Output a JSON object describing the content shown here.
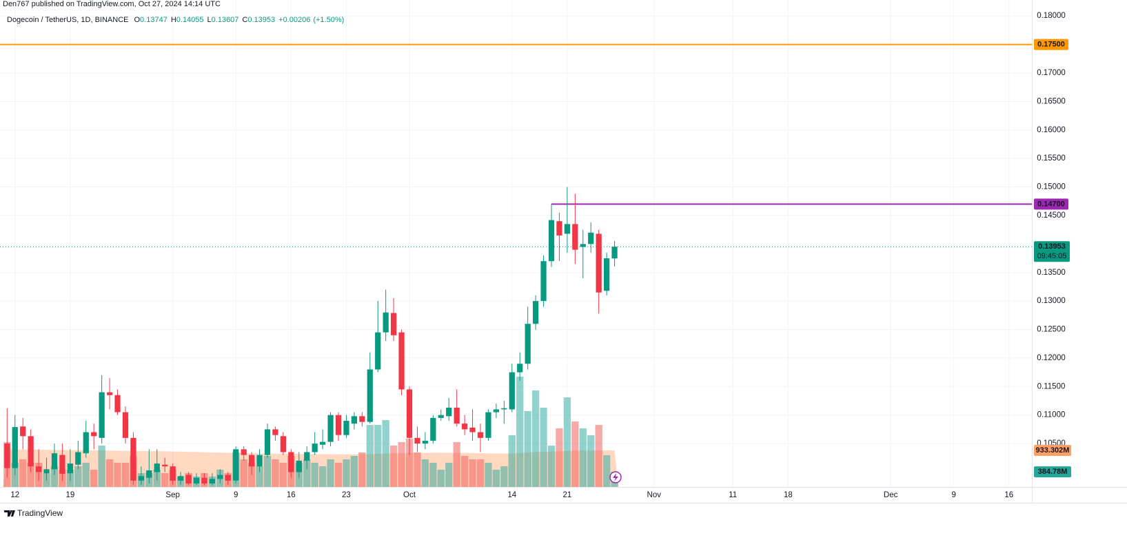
{
  "chart_data": {
    "type": "candlestick",
    "publisher_note": "Den767 published on TradingView.com, Oct 27, 2024 14:14 UTC",
    "title": "Dogecoin / TetherUS, 1D, BINANCE",
    "legend_labels": [
      "O",
      "H",
      "L",
      "C"
    ],
    "change": {
      "value": 0.00206,
      "label": "+0.00206"
    },
    "change_pct": {
      "value": 1.5,
      "label": "(+1.50%)"
    },
    "open": [
      0.105,
      0.1007,
      0.108,
      0.1063,
      0.101,
      0.0998,
      0.1005,
      0.103,
      0.0998,
      0.1013,
      0.1033,
      0.107,
      0.106,
      0.114,
      0.1135,
      0.1105,
      0.106,
      0.0985,
      0.099,
      0.1,
      0.1013,
      0.101,
      0.0985,
      0.0995,
      0.098,
      0.099,
      0.098,
      0.0988,
      0.0995,
      0.0985,
      0.104,
      0.103,
      0.101,
      0.103,
      0.1075,
      0.1063,
      0.1035,
      0.1,
      0.102,
      0.1035,
      0.1048,
      0.1053,
      0.11,
      0.1065,
      0.1085,
      0.1098,
      0.1088,
      0.118,
      0.1245,
      0.1279,
      0.1245,
      0.1145,
      0.106,
      0.105,
      0.1055,
      0.1095,
      0.1098,
      0.1113,
      0.1085,
      0.1078,
      0.107,
      0.106,
      0.1105,
      0.111,
      0.111,
      0.1175,
      0.119,
      0.126,
      0.13,
      0.137,
      0.144,
      0.1418,
      0.1435,
      0.1395,
      0.14,
      0.1418,
      0.1318,
      0.13747
    ],
    "high": [
      0.1112,
      0.11,
      0.1095,
      0.1075,
      0.104,
      0.1025,
      0.105,
      0.105,
      0.104,
      0.1055,
      0.109,
      0.1085,
      0.117,
      0.1165,
      0.1145,
      0.1115,
      0.107,
      0.101,
      0.104,
      0.104,
      0.1025,
      0.1015,
      0.1,
      0.1,
      0.0998,
      0.0998,
      0.0998,
      0.1005,
      0.1,
      0.1045,
      0.1045,
      0.1035,
      0.104,
      0.1085,
      0.108,
      0.107,
      0.104,
      0.1035,
      0.1045,
      0.107,
      0.1075,
      0.1105,
      0.1105,
      0.11,
      0.1105,
      0.1105,
      0.121,
      0.13,
      0.132,
      0.1305,
      0.125,
      0.115,
      0.108,
      0.107,
      0.11,
      0.111,
      0.113,
      0.1145,
      0.11,
      0.111,
      0.1085,
      0.111,
      0.112,
      0.1125,
      0.119,
      0.121,
      0.129,
      0.131,
      0.138,
      0.147,
      0.1455,
      0.15,
      0.1488,
      0.1425,
      0.1438,
      0.1425,
      0.1385,
      0.14055
    ],
    "low": [
      0.099,
      0.0995,
      0.104,
      0.1,
      0.0985,
      0.0985,
      0.0995,
      0.0985,
      0.0985,
      0.1005,
      0.1025,
      0.104,
      0.105,
      0.111,
      0.11,
      0.105,
      0.0978,
      0.0978,
      0.098,
      0.0985,
      0.1,
      0.0978,
      0.0978,
      0.0977,
      0.0977,
      0.0977,
      0.0977,
      0.098,
      0.0978,
      0.098,
      0.102,
      0.0995,
      0.1,
      0.1025,
      0.1055,
      0.103,
      0.099,
      0.099,
      0.1005,
      0.103,
      0.104,
      0.1045,
      0.1055,
      0.106,
      0.1075,
      0.108,
      0.1085,
      0.1175,
      0.123,
      0.123,
      0.1135,
      0.103,
      0.1035,
      0.104,
      0.105,
      0.109,
      0.109,
      0.108,
      0.1065,
      0.1055,
      0.1035,
      0.1055,
      0.1095,
      0.1085,
      0.1105,
      0.116,
      0.118,
      0.125,
      0.129,
      0.136,
      0.137,
      0.1385,
      0.1365,
      0.134,
      0.1385,
      0.1278,
      0.131,
      0.13607
    ],
    "close": [
      0.1007,
      0.1079,
      0.1063,
      0.101,
      0.1,
      0.1005,
      0.1033,
      0.0997,
      0.1015,
      0.1035,
      0.107,
      0.1063,
      0.114,
      0.1135,
      0.1105,
      0.106,
      0.0985,
      0.0993,
      0.1003,
      0.1015,
      0.101,
      0.0985,
      0.0993,
      0.098,
      0.099,
      0.098,
      0.0988,
      0.0995,
      0.0985,
      0.104,
      0.103,
      0.101,
      0.103,
      0.1075,
      0.1065,
      0.1035,
      0.1,
      0.102,
      0.1035,
      0.105,
      0.1053,
      0.11,
      0.1065,
      0.109,
      0.1098,
      0.1088,
      0.118,
      0.1245,
      0.128,
      0.124,
      0.1145,
      0.106,
      0.105,
      0.1055,
      0.1095,
      0.11,
      0.1113,
      0.1085,
      0.1075,
      0.107,
      0.106,
      0.1105,
      0.111,
      0.1112,
      0.1175,
      0.119,
      0.126,
      0.13,
      0.137,
      0.1442,
      0.1415,
      0.1435,
      0.139,
      0.14,
      0.142,
      0.1315,
      0.1375,
      0.13953
    ],
    "up_color": "#089981",
    "down_color": "#f23645",
    "volume": [
      1144,
      616,
      704,
      616,
      616,
      352,
      528,
      440,
      440,
      528,
      616,
      440,
      1056,
      704,
      616,
      616,
      792,
      352,
      352,
      440,
      352,
      440,
      264,
      352,
      264,
      352,
      264,
      440,
      352,
      880,
      704,
      616,
      528,
      792,
      704,
      616,
      792,
      616,
      704,
      616,
      528,
      704,
      616,
      704,
      792,
      880,
      1584,
      1584,
      1707,
      1056,
      1144,
      1232,
      880,
      704,
      616,
      440,
      616,
      1144,
      792,
      704,
      704,
      616,
      440,
      528,
      1320,
      2816,
      1936,
      2464,
      2024,
      1056,
      1496,
      2288,
      1672,
      1496,
      1320,
      1584,
      810,
      384.78
    ],
    "volume_labels": [
      null,
      null,
      null,
      null,
      null,
      null,
      null,
      null,
      null,
      null,
      null,
      null,
      null,
      null,
      null,
      null,
      null,
      null,
      null,
      null,
      null,
      null,
      null,
      null,
      null,
      null,
      null,
      null,
      null,
      null,
      null,
      null,
      null,
      null,
      null,
      null,
      null,
      null,
      null,
      null,
      null,
      null,
      null,
      null,
      null,
      null,
      null,
      null,
      null,
      null,
      null,
      null,
      null,
      null,
      null,
      null,
      null,
      null,
      null,
      null,
      null,
      null,
      null,
      null,
      null,
      null,
      null,
      null,
      null,
      null,
      null,
      null,
      null,
      null,
      null,
      null,
      null,
      "384.78M"
    ],
    "volume_up_color": "#26a69a",
    "volume_down_color": "#ef5350",
    "volume_ma": [
      960,
      958,
      955,
      952,
      950,
      948,
      945,
      942,
      940,
      938,
      935,
      932,
      930,
      928,
      925,
      922,
      920,
      918,
      915,
      912,
      910,
      905,
      900,
      895,
      890,
      885,
      880,
      875,
      870,
      865,
      862,
      858,
      855,
      852,
      850,
      848,
      845,
      842,
      840,
      838,
      836,
      835,
      834,
      833,
      832,
      833,
      838,
      845,
      852,
      858,
      862,
      868,
      872,
      874,
      875,
      874,
      872,
      870,
      868,
      865,
      862,
      858,
      855,
      852,
      855,
      868,
      880,
      892,
      900,
      905,
      912,
      920,
      925,
      928,
      930,
      932,
      933,
      933.302
    ],
    "volume_ma_labels": [
      null,
      null,
      null,
      null,
      null,
      null,
      null,
      null,
      null,
      null,
      null,
      null,
      null,
      null,
      null,
      null,
      null,
      null,
      null,
      null,
      null,
      null,
      null,
      null,
      null,
      null,
      null,
      null,
      null,
      null,
      null,
      null,
      null,
      null,
      null,
      null,
      null,
      null,
      null,
      null,
      null,
      null,
      null,
      null,
      null,
      null,
      null,
      null,
      null,
      null,
      null,
      null,
      null,
      null,
      null,
      null,
      null,
      null,
      null,
      null,
      null,
      null,
      null,
      null,
      null,
      null,
      null,
      null,
      null,
      null,
      null,
      null,
      null,
      null,
      null,
      null,
      null,
      "933.302M"
    ],
    "volume_ma_color": "#ff9e66",
    "vlim": [
      0,
      12440
    ],
    "xlim": [
      -0.9,
      129.9
    ],
    "xticks": [
      {
        "value": 1,
        "label": "12"
      },
      {
        "value": 8,
        "label": "19"
      },
      {
        "value": 21,
        "label": "Sep"
      },
      {
        "value": 29,
        "label": "9"
      },
      {
        "value": 36,
        "label": "16"
      },
      {
        "value": 43,
        "label": "23"
      },
      {
        "value": 51,
        "label": "Oct"
      },
      {
        "value": 64,
        "label": "14"
      },
      {
        "value": 71,
        "label": "21"
      },
      {
        "value": 82,
        "label": "Nov"
      },
      {
        "value": 92,
        "label": "11"
      },
      {
        "value": 99,
        "label": "18"
      },
      {
        "value": 112,
        "label": "Dec"
      },
      {
        "value": 120,
        "label": "9"
      },
      {
        "value": 127,
        "label": "16"
      }
    ],
    "ylim": [
      0.0974,
      0.1828
    ],
    "yticks": [
      {
        "value": 0.18,
        "label": "0.18000"
      },
      {
        "value": 0.17,
        "label": "0.17000"
      },
      {
        "value": 0.165,
        "label": "0.16500"
      },
      {
        "value": 0.16,
        "label": "0.16000"
      },
      {
        "value": 0.155,
        "label": "0.15500"
      },
      {
        "value": 0.15,
        "label": "0.15000"
      },
      {
        "value": 0.145,
        "label": "0.14500"
      },
      {
        "value": 0.135,
        "label": "0.13500"
      },
      {
        "value": 0.13,
        "label": "0.13000"
      },
      {
        "value": 0.125,
        "label": "0.12500"
      },
      {
        "value": 0.12,
        "label": "0.12000"
      },
      {
        "value": 0.115,
        "label": "0.11500"
      },
      {
        "value": 0.11,
        "label": "0.11000"
      },
      {
        "value": 0.105,
        "label": "0.10500"
      }
    ],
    "grid": true,
    "lines": [
      {
        "value": 0.175,
        "label": "0.17500",
        "color": "#ff9800"
      },
      {
        "value": 0.147,
        "label": "0.14700",
        "color": "#9c27b0",
        "x_start": 69
      }
    ],
    "countdown": "09:45:05",
    "brand": "TradingView"
  }
}
